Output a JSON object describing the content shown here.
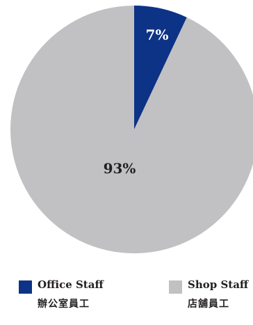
{
  "chart_data": {
    "type": "pie",
    "slices": [
      {
        "name": "Office Staff",
        "name_zh": "辦公室員工",
        "value": 7,
        "label": "7%",
        "color": "#0d3386",
        "label_color": "#ffffff"
      },
      {
        "name": "Shop Staff",
        "name_zh": "店舖員工",
        "value": 93,
        "label": "93%",
        "color": "#c1c1c3",
        "label_color": "#231f20"
      }
    ],
    "legend_position": "bottom"
  }
}
